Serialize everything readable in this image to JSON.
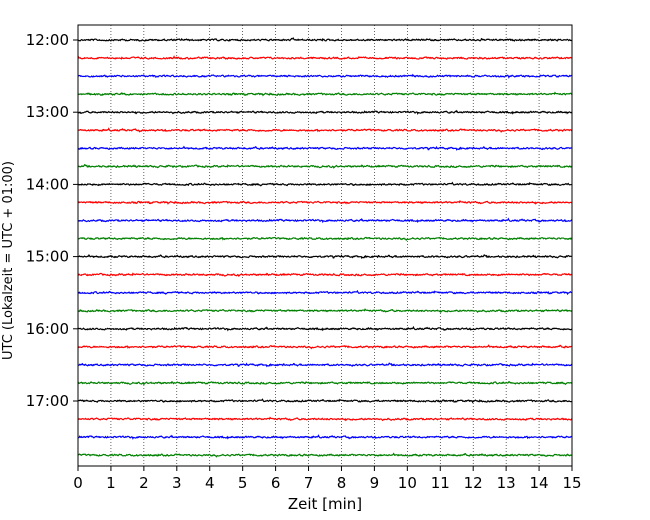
{
  "chart_data": {
    "type": "line",
    "xlabel": "Zeit  [min]",
    "ylabel": "UTC (Lokalzeit = UTC + 01:00)",
    "xlim": [
      0,
      15
    ],
    "x_ticks": [
      0,
      1,
      2,
      3,
      4,
      5,
      6,
      7,
      8,
      9,
      10,
      11,
      12,
      13,
      14,
      15
    ],
    "y_tick_labels": [
      "12:00",
      "13:00",
      "14:00",
      "15:00",
      "16:00",
      "17:00"
    ],
    "y_tick_row_index": [
      0,
      4,
      8,
      12,
      16,
      20
    ],
    "grid": "vertical dotted",
    "trace_colors": [
      "#000000",
      "#ff0000",
      "#0000ff",
      "#008000"
    ],
    "traces": [
      {
        "start": "12:00"
      },
      {
        "start": "12:15"
      },
      {
        "start": "12:30"
      },
      {
        "start": "12:45"
      },
      {
        "start": "13:00"
      },
      {
        "start": "13:15"
      },
      {
        "start": "13:30"
      },
      {
        "start": "13:45"
      },
      {
        "start": "14:00"
      },
      {
        "start": "14:15"
      },
      {
        "start": "14:30"
      },
      {
        "start": "14:45"
      },
      {
        "start": "15:00"
      },
      {
        "start": "15:15"
      },
      {
        "start": "15:30"
      },
      {
        "start": "15:45"
      },
      {
        "start": "16:00"
      },
      {
        "start": "16:15"
      },
      {
        "start": "16:30"
      },
      {
        "start": "16:45"
      },
      {
        "start": "17:00"
      },
      {
        "start": "17:15"
      },
      {
        "start": "17:30"
      },
      {
        "start": "17:45"
      }
    ]
  }
}
